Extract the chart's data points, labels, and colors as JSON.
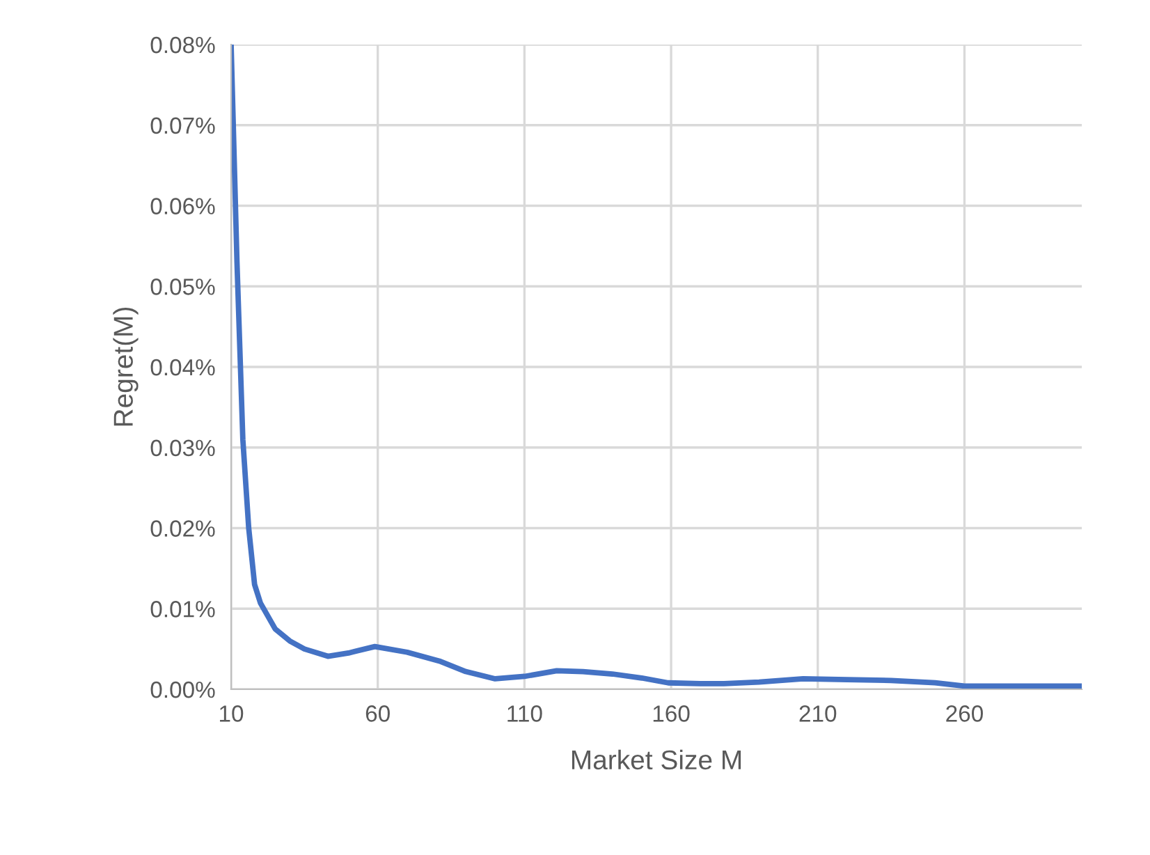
{
  "chart_data": {
    "type": "line",
    "xlabel": "Market Size M",
    "ylabel": "Regret(M)",
    "x": [
      10,
      12,
      14,
      16,
      18,
      20,
      25,
      30,
      35,
      43,
      50,
      59,
      70,
      81,
      90,
      100,
      110,
      121,
      130,
      140,
      150,
      159,
      170,
      178,
      190,
      205,
      220,
      235,
      250,
      260,
      280,
      300
    ],
    "series": [
      {
        "color": "#4472c4",
        "values": [
          0.08,
          0.053,
          0.031,
          0.02,
          0.013,
          0.0107,
          0.0075,
          0.006,
          0.005,
          0.0041,
          0.0045,
          0.0053,
          0.0046,
          0.0035,
          0.0022,
          0.0013,
          0.0016,
          0.0023,
          0.0022,
          0.0019,
          0.0014,
          0.0008,
          0.0007,
          0.0007,
          0.0009,
          0.0013,
          0.0012,
          0.0011,
          0.0008,
          0.0004,
          0.0004,
          0.0004
        ]
      }
    ],
    "xlim": [
      10,
      300
    ],
    "xticks": [
      10,
      60,
      110,
      160,
      210,
      260
    ],
    "ylim": [
      0,
      0.08
    ],
    "yticks": [
      {
        "value": 0,
        "label": "0.00%"
      },
      {
        "value": 0.01,
        "label": "0.01%"
      },
      {
        "value": 0.02,
        "label": "0.02%"
      },
      {
        "value": 0.03,
        "label": "0.03%"
      },
      {
        "value": 0.04,
        "label": "0.04%"
      },
      {
        "value": 0.05,
        "label": "0.05%"
      },
      {
        "value": 0.06,
        "label": "0.06%"
      },
      {
        "value": 0.07,
        "label": "0.07%"
      },
      {
        "value": 0.08,
        "label": "0.08%"
      }
    ],
    "grid": true,
    "legend": false,
    "marker": "none",
    "line_style": "solid"
  }
}
